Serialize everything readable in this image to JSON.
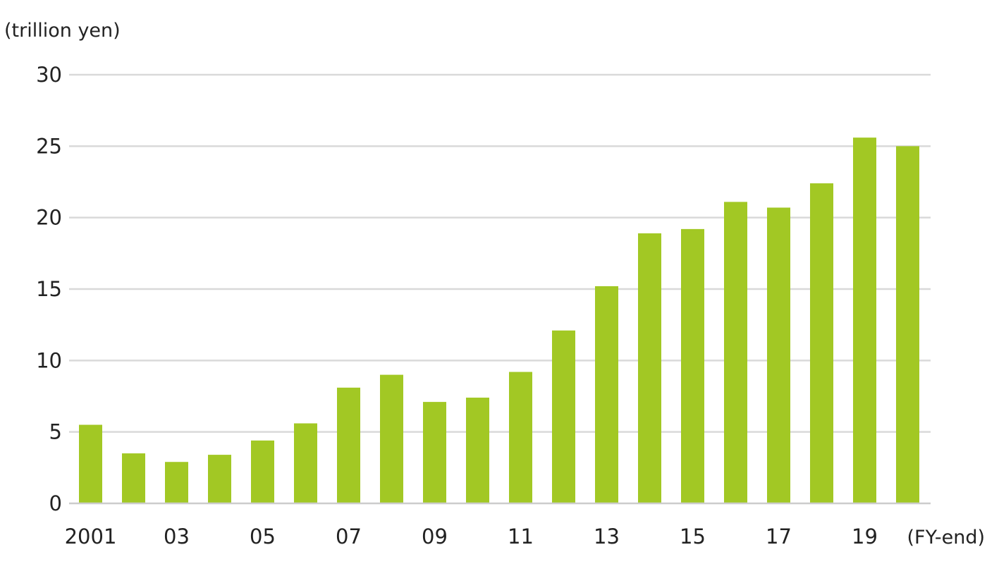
{
  "chart_data": {
    "type": "bar",
    "y_unit_label": "(trillion yen)",
    "x_unit_label": "(FY-end)",
    "categories": [
      "2001",
      "02",
      "03",
      "04",
      "05",
      "06",
      "07",
      "08",
      "09",
      "10",
      "11",
      "12",
      "13",
      "14",
      "15",
      "16",
      "17",
      "18",
      "19",
      "20"
    ],
    "x_tick_labels": [
      {
        "index": 0,
        "text": "2001"
      },
      {
        "index": 2,
        "text": "03"
      },
      {
        "index": 4,
        "text": "05"
      },
      {
        "index": 6,
        "text": "07"
      },
      {
        "index": 8,
        "text": "09"
      },
      {
        "index": 10,
        "text": "11"
      },
      {
        "index": 12,
        "text": "13"
      },
      {
        "index": 14,
        "text": "15"
      },
      {
        "index": 16,
        "text": "17"
      },
      {
        "index": 18,
        "text": "19"
      }
    ],
    "values": [
      5.5,
      3.5,
      2.9,
      3.4,
      4.4,
      5.6,
      8.1,
      9.0,
      7.1,
      7.4,
      9.2,
      12.1,
      15.2,
      18.9,
      19.2,
      21.1,
      20.7,
      22.4,
      25.6,
      25.0
    ],
    "ylim": [
      0,
      30
    ],
    "y_ticks": [
      0,
      5,
      10,
      15,
      20,
      25,
      30
    ],
    "grid": true,
    "bar_color": "#a2c824",
    "grid_color": "#d9d9d9"
  }
}
